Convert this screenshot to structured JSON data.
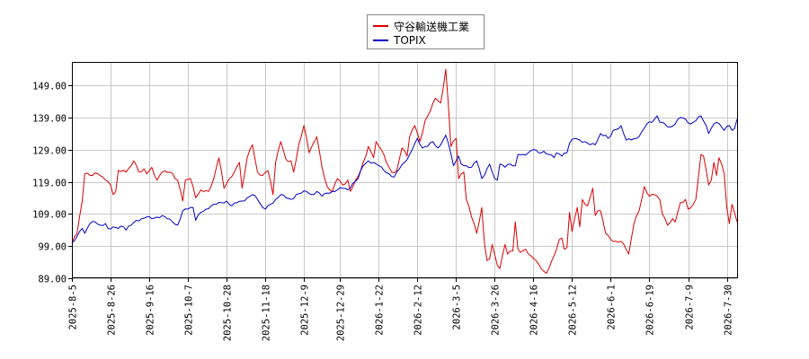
{
  "chart_data": {
    "type": "line",
    "title": "",
    "xlabel": "",
    "ylabel": "",
    "ylim": [
      89.0,
      156.0
    ],
    "yticks": [
      "149.00",
      "139.00",
      "129.00",
      "119.00",
      "109.00",
      "99.00",
      "89.00"
    ],
    "ytick_values": [
      149,
      139,
      129,
      119,
      109,
      99,
      89
    ],
    "xticks": [
      "2025-8-5",
      "2025-8-26",
      "2025-9-16",
      "2025-10-7",
      "2025-10-28",
      "2025-11-18",
      "2025-12-9",
      "2025-12-29",
      "2026-1-22",
      "2026-2-12",
      "2026-3-5",
      "2026-3-26",
      "2026-4-16",
      "2026-5-12",
      "2026-6-1",
      "2026-6-19",
      "2026-7-9",
      "2026-7-30"
    ],
    "xtick_index": [
      0,
      15,
      30,
      45,
      60,
      75,
      90,
      104,
      119,
      134,
      149,
      164,
      179,
      194,
      209,
      224,
      239,
      254
    ],
    "x_count": 259,
    "grid": true,
    "legend_position": "top-center",
    "colors": {
      "series1": "#dd0000",
      "series2": "#0000cc",
      "grid": "#c8c8c8",
      "axis": "#000000"
    },
    "series": [
      {
        "name": "守谷輸送機工業",
        "keypoints": [
          [
            0,
            100.0
          ],
          [
            2,
            103.0
          ],
          [
            4,
            113.0
          ],
          [
            5,
            121.5
          ],
          [
            7,
            121.0
          ],
          [
            10,
            121.5
          ],
          [
            13,
            119.5
          ],
          [
            15,
            118.0
          ],
          [
            16,
            115.0
          ],
          [
            17,
            116.0
          ],
          [
            18,
            122.5
          ],
          [
            21,
            122.0
          ],
          [
            23,
            124.0
          ],
          [
            24,
            125.5
          ],
          [
            26,
            122.0
          ],
          [
            28,
            123.0
          ],
          [
            29,
            121.5
          ],
          [
            31,
            123.5
          ],
          [
            33,
            119.5
          ],
          [
            35,
            122.0
          ],
          [
            38,
            122.0
          ],
          [
            41,
            119.5
          ],
          [
            43,
            113.0
          ],
          [
            44,
            119.5
          ],
          [
            46,
            120.0
          ],
          [
            48,
            114.0
          ],
          [
            50,
            116.5
          ],
          [
            53,
            116.0
          ],
          [
            55,
            120.0
          ],
          [
            57,
            126.5
          ],
          [
            59,
            117.0
          ],
          [
            61,
            120.0
          ],
          [
            63,
            122.0
          ],
          [
            65,
            125.0
          ],
          [
            66,
            117.0
          ],
          [
            68,
            126.5
          ],
          [
            70,
            130.5
          ],
          [
            72,
            122.0
          ],
          [
            74,
            121.0
          ],
          [
            76,
            122.5
          ],
          [
            78,
            115.0
          ],
          [
            79,
            125.0
          ],
          [
            81,
            131.5
          ],
          [
            83,
            126.0
          ],
          [
            85,
            125.5
          ],
          [
            86,
            122.0
          ],
          [
            88,
            130.5
          ],
          [
            90,
            136.5
          ],
          [
            92,
            128.0
          ],
          [
            94,
            131.5
          ],
          [
            95,
            133.0
          ],
          [
            97,
            123.5
          ],
          [
            99,
            117.5
          ],
          [
            101,
            116.0
          ],
          [
            103,
            120.0
          ],
          [
            105,
            118.0
          ],
          [
            107,
            119.5
          ],
          [
            108,
            116.0
          ],
          [
            110,
            119.5
          ],
          [
            112,
            122.5
          ],
          [
            114,
            127.0
          ],
          [
            115,
            130.0
          ],
          [
            117,
            126.5
          ],
          [
            118,
            131.5
          ],
          [
            120,
            129.0
          ],
          [
            122,
            125.0
          ],
          [
            124,
            122.0
          ],
          [
            126,
            122.5
          ],
          [
            128,
            129.5
          ],
          [
            130,
            127.0
          ],
          [
            131,
            133.0
          ],
          [
            133,
            136.5
          ],
          [
            135,
            131.5
          ],
          [
            137,
            138.0
          ],
          [
            139,
            141.0
          ],
          [
            141,
            145.0
          ],
          [
            143,
            143.5
          ],
          [
            144,
            148.0
          ],
          [
            145,
            154.0
          ],
          [
            146,
            143.0
          ],
          [
            147,
            130.0
          ],
          [
            149,
            132.5
          ],
          [
            150,
            120.0
          ],
          [
            152,
            122.0
          ],
          [
            153,
            113.5
          ],
          [
            156,
            106.0
          ],
          [
            157,
            103.0
          ],
          [
            159,
            111.0
          ],
          [
            160,
            100.0
          ],
          [
            161,
            94.5
          ],
          [
            162,
            95.0
          ],
          [
            163,
            99.5
          ],
          [
            165,
            93.0
          ],
          [
            166,
            92.0
          ],
          [
            168,
            99.5
          ],
          [
            169,
            96.5
          ],
          [
            171,
            97.5
          ],
          [
            172,
            106.5
          ],
          [
            173,
            98.0
          ],
          [
            174,
            97.0
          ],
          [
            176,
            98.0
          ],
          [
            178,
            96.0
          ],
          [
            180,
            94.5
          ],
          [
            181,
            93.5
          ],
          [
            182,
            92.0
          ],
          [
            184,
            90.5
          ],
          [
            185,
            92.0
          ],
          [
            187,
            96.0
          ],
          [
            189,
            101.0
          ],
          [
            190,
            101.5
          ],
          [
            191,
            98.0
          ],
          [
            192,
            98.5
          ],
          [
            193,
            109.5
          ],
          [
            194,
            103.5
          ],
          [
            196,
            111.0
          ],
          [
            197,
            105.0
          ],
          [
            198,
            113.5
          ],
          [
            199,
            112.0
          ],
          [
            200,
            111.5
          ],
          [
            202,
            117.0
          ],
          [
            203,
            108.5
          ],
          [
            204,
            110.0
          ],
          [
            205,
            110.0
          ],
          [
            207,
            103.0
          ],
          [
            209,
            101.0
          ],
          [
            211,
            100.5
          ],
          [
            213,
            100.5
          ],
          [
            215,
            98.0
          ],
          [
            216,
            96.5
          ],
          [
            218,
            106.0
          ],
          [
            220,
            110.0
          ],
          [
            222,
            117.5
          ],
          [
            224,
            114.5
          ],
          [
            226,
            115.0
          ],
          [
            228,
            113.5
          ],
          [
            229,
            109.0
          ],
          [
            231,
            105.5
          ],
          [
            233,
            107.5
          ],
          [
            234,
            106.5
          ],
          [
            236,
            112.5
          ],
          [
            238,
            113.5
          ],
          [
            239,
            110.5
          ],
          [
            241,
            112.0
          ],
          [
            242,
            113.5
          ],
          [
            244,
            127.5
          ],
          [
            245,
            127.0
          ],
          [
            247,
            118.0
          ],
          [
            248,
            119.5
          ],
          [
            249,
            125.0
          ],
          [
            250,
            121.0
          ],
          [
            251,
            126.5
          ],
          [
            253,
            121.5
          ],
          [
            254,
            111.0
          ],
          [
            255,
            106.0
          ],
          [
            256,
            112.0
          ],
          [
            258,
            106.5
          ]
        ]
      },
      {
        "name": "TOPIX",
        "keypoints": [
          [
            0,
            100.0
          ],
          [
            2,
            102.0
          ],
          [
            4,
            104.5
          ],
          [
            5,
            103.0
          ],
          [
            7,
            106.0
          ],
          [
            9,
            106.5
          ],
          [
            11,
            105.5
          ],
          [
            13,
            106.0
          ],
          [
            14,
            104.5
          ],
          [
            16,
            105.0
          ],
          [
            18,
            104.5
          ],
          [
            20,
            105.0
          ],
          [
            21,
            104.0
          ],
          [
            23,
            105.5
          ],
          [
            25,
            107.0
          ],
          [
            27,
            107.5
          ],
          [
            29,
            108.0
          ],
          [
            31,
            107.5
          ],
          [
            33,
            108.0
          ],
          [
            35,
            108.5
          ],
          [
            37,
            107.5
          ],
          [
            39,
            106.5
          ],
          [
            41,
            105.5
          ],
          [
            43,
            110.0
          ],
          [
            45,
            110.5
          ],
          [
            47,
            111.0
          ],
          [
            48,
            107.0
          ],
          [
            50,
            109.5
          ],
          [
            52,
            110.5
          ],
          [
            54,
            111.5
          ],
          [
            56,
            112.0
          ],
          [
            58,
            112.5
          ],
          [
            60,
            113.0
          ],
          [
            62,
            111.5
          ],
          [
            64,
            112.5
          ],
          [
            66,
            113.0
          ],
          [
            68,
            114.0
          ],
          [
            70,
            115.0
          ],
          [
            72,
            113.5
          ],
          [
            74,
            111.0
          ],
          [
            75,
            110.5
          ],
          [
            77,
            112.0
          ],
          [
            79,
            113.5
          ],
          [
            81,
            115.0
          ],
          [
            83,
            114.0
          ],
          [
            85,
            113.5
          ],
          [
            87,
            115.0
          ],
          [
            89,
            115.5
          ],
          [
            91,
            116.0
          ],
          [
            93,
            115.0
          ],
          [
            95,
            116.0
          ],
          [
            97,
            114.5
          ],
          [
            99,
            115.5
          ],
          [
            101,
            116.0
          ],
          [
            103,
            116.5
          ],
          [
            105,
            117.0
          ],
          [
            107,
            116.5
          ],
          [
            109,
            118.5
          ],
          [
            111,
            120.0
          ],
          [
            113,
            124.0
          ],
          [
            115,
            125.5
          ],
          [
            117,
            125.0
          ],
          [
            119,
            124.0
          ],
          [
            121,
            122.5
          ],
          [
            123,
            121.5
          ],
          [
            125,
            120.5
          ],
          [
            127,
            123.0
          ],
          [
            129,
            125.0
          ],
          [
            131,
            127.5
          ],
          [
            133,
            131.0
          ],
          [
            134,
            132.5
          ],
          [
            136,
            129.5
          ],
          [
            138,
            130.0
          ],
          [
            140,
            131.5
          ],
          [
            142,
            129.5
          ],
          [
            144,
            132.0
          ],
          [
            145,
            133.5
          ],
          [
            146,
            131.0
          ],
          [
            148,
            124.0
          ],
          [
            149,
            125.5
          ],
          [
            150,
            127.0
          ],
          [
            151,
            124.5
          ],
          [
            153,
            124.0
          ],
          [
            155,
            123.5
          ],
          [
            157,
            125.5
          ],
          [
            159,
            120.0
          ],
          [
            160,
            121.0
          ],
          [
            161,
            123.0
          ],
          [
            162,
            124.5
          ],
          [
            164,
            120.0
          ],
          [
            165,
            119.5
          ],
          [
            166,
            124.5
          ],
          [
            168,
            123.5
          ],
          [
            170,
            124.5
          ],
          [
            172,
            124.0
          ],
          [
            173,
            127.5
          ],
          [
            175,
            127.5
          ],
          [
            177,
            128.0
          ],
          [
            179,
            129.0
          ],
          [
            181,
            128.0
          ],
          [
            183,
            128.5
          ],
          [
            185,
            127.5
          ],
          [
            187,
            126.5
          ],
          [
            188,
            128.0
          ],
          [
            190,
            127.0
          ],
          [
            192,
            128.0
          ],
          [
            193,
            131.0
          ],
          [
            195,
            132.5
          ],
          [
            197,
            132.0
          ],
          [
            199,
            131.5
          ],
          [
            201,
            130.5
          ],
          [
            203,
            130.5
          ],
          [
            205,
            134.0
          ],
          [
            207,
            133.5
          ],
          [
            208,
            132.5
          ],
          [
            210,
            135.0
          ],
          [
            212,
            135.5
          ],
          [
            213,
            136.5
          ],
          [
            215,
            132.0
          ],
          [
            217,
            132.0
          ],
          [
            219,
            132.5
          ],
          [
            221,
            134.5
          ],
          [
            223,
            137.0
          ],
          [
            225,
            137.5
          ],
          [
            227,
            139.5
          ],
          [
            228,
            137.5
          ],
          [
            230,
            137.0
          ],
          [
            232,
            136.0
          ],
          [
            234,
            137.0
          ],
          [
            236,
            139.0
          ],
          [
            238,
            138.5
          ],
          [
            240,
            137.0
          ],
          [
            242,
            138.0
          ],
          [
            244,
            139.5
          ],
          [
            246,
            136.5
          ],
          [
            247,
            134.0
          ],
          [
            249,
            137.0
          ],
          [
            250,
            137.5
          ],
          [
            252,
            136.0
          ],
          [
            253,
            135.0
          ],
          [
            255,
            136.5
          ],
          [
            256,
            135.0
          ],
          [
            257,
            135.5
          ],
          [
            258,
            138.5
          ]
        ]
      }
    ]
  }
}
